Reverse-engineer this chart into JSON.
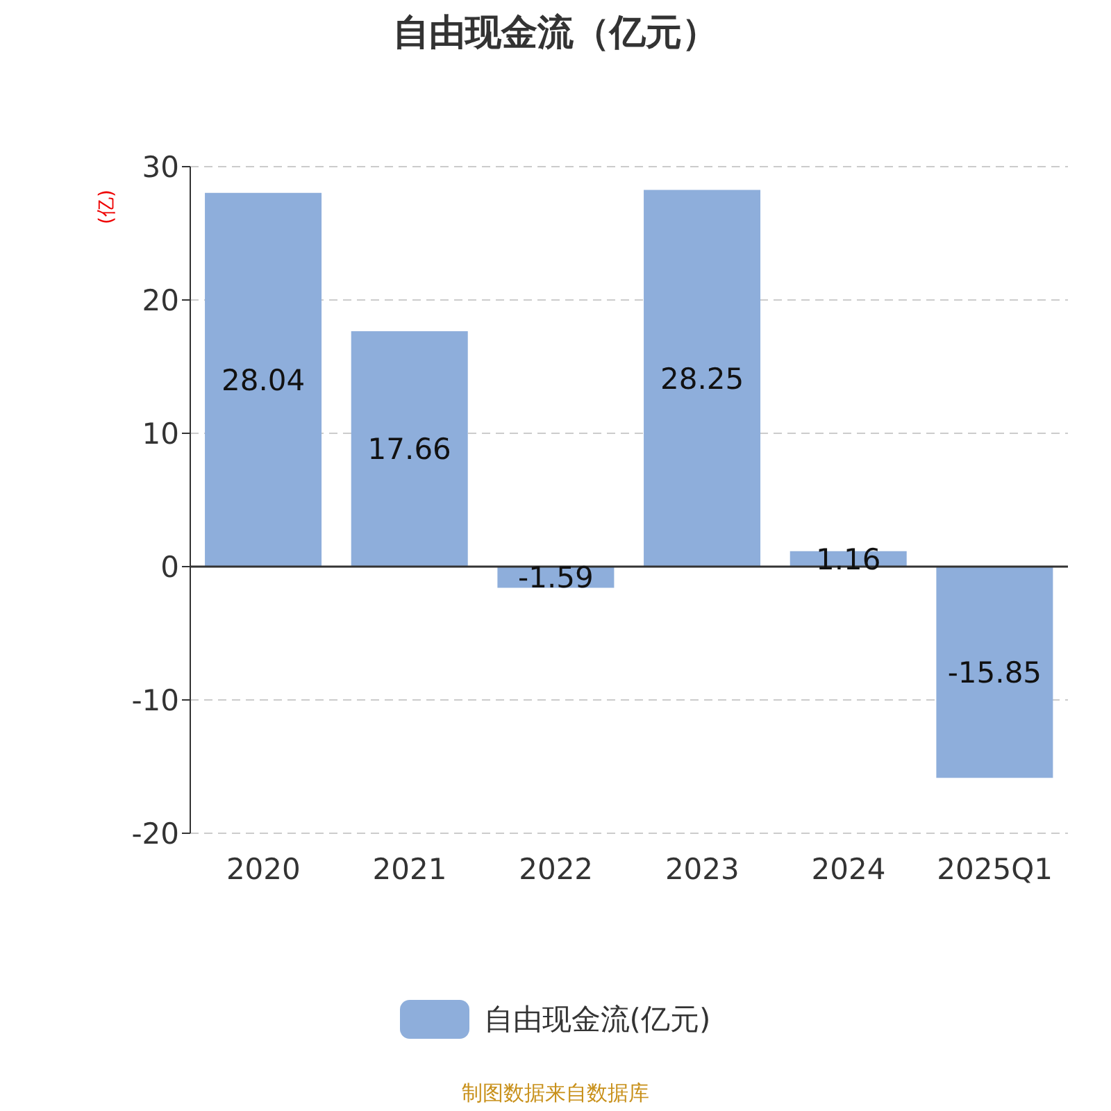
{
  "chart_data": {
    "type": "bar",
    "title": "自由现金流（亿元）",
    "ylabel": "(亿)",
    "categories": [
      "2020",
      "2021",
      "2022",
      "2023",
      "2024",
      "2025Q1"
    ],
    "series": [
      {
        "name": "自由现金流(亿元)",
        "color": "#8eaedb",
        "values": [
          28.04,
          17.66,
          -1.59,
          28.25,
          1.16,
          -15.85
        ]
      }
    ],
    "ylim": [
      -20,
      30
    ],
    "yticks": [
      -20,
      -10,
      0,
      10,
      20,
      30
    ],
    "grid": "y",
    "legend": "bottom",
    "data_labels": true,
    "annotations": [
      "制图数据来自数据库"
    ]
  }
}
